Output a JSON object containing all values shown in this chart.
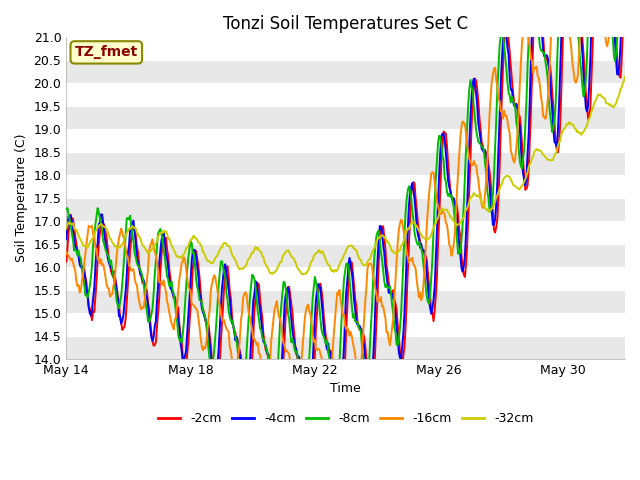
{
  "title": "Tonzi Soil Temperatures Set C",
  "xlabel": "Time",
  "ylabel": "Soil Temperature (C)",
  "annotation": "TZ_fmet",
  "ylim": [
    14.0,
    21.0
  ],
  "yticks": [
    14.0,
    14.5,
    15.0,
    15.5,
    16.0,
    16.5,
    17.0,
    17.5,
    18.0,
    18.5,
    19.0,
    19.5,
    20.0,
    20.5,
    21.0
  ],
  "xtick_labels": [
    "May 14",
    "May 18",
    "May 22",
    "May 26",
    "May 30"
  ],
  "xtick_positions": [
    0,
    4,
    8,
    12,
    16
  ],
  "series_colors": [
    "#ff0000",
    "#0000ff",
    "#00bb00",
    "#ff8800",
    "#cccc00"
  ],
  "series_labels": [
    "-2cm",
    "-4cm",
    "-8cm",
    "-16cm",
    "-32cm"
  ],
  "line_width": 1.4,
  "plot_bg_color": "#ffffff",
  "grid_color": "#d8d8d8",
  "annotation_bg": "#ffffcc",
  "annotation_border": "#888800",
  "title_fontsize": 12,
  "axis_fontsize": 9,
  "legend_fontsize": 9
}
